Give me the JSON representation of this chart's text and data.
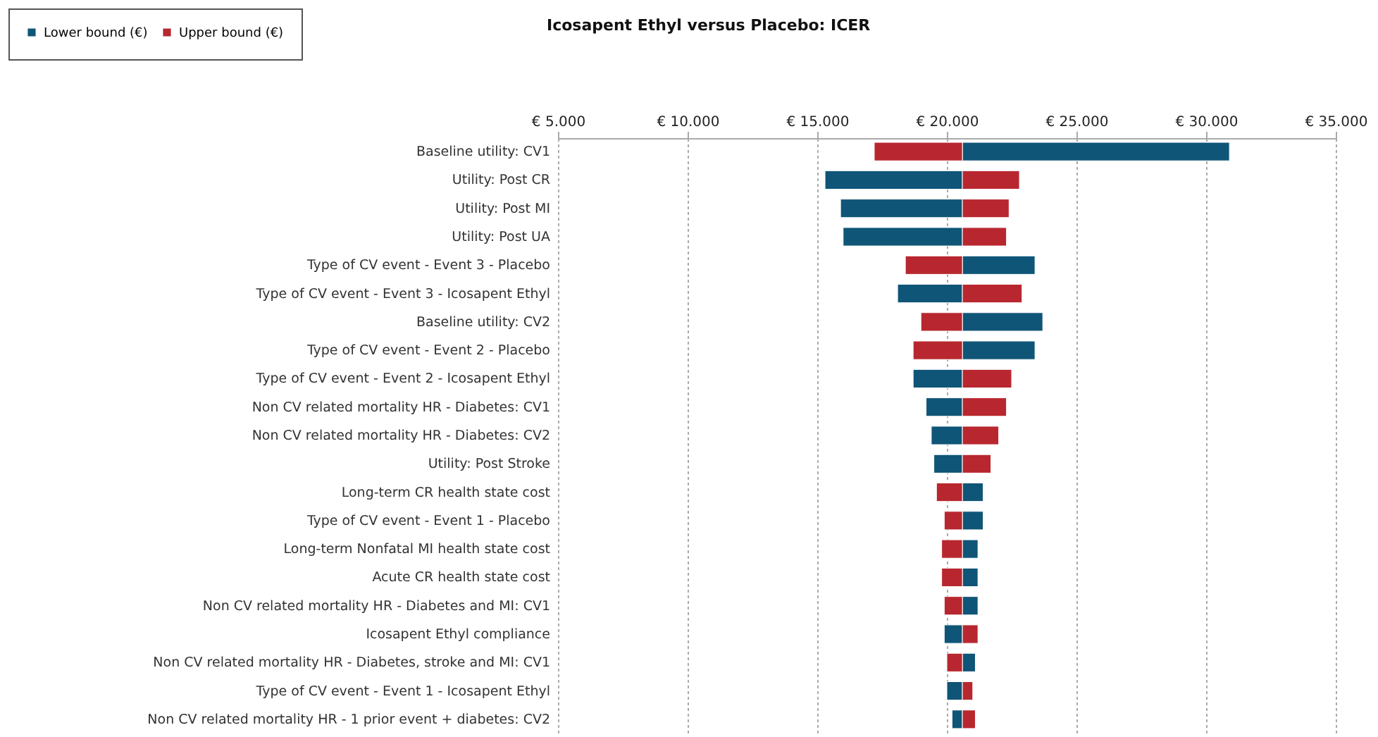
{
  "chart_data": {
    "type": "bar",
    "orientation": "horizontal",
    "title": "Icosapent Ethyl versus Placebo: ICER",
    "categories": [
      "Baseline utility: CV1",
      "Utility: Post CR",
      "Utility: Post MI",
      "Utility: Post UA",
      "Type of CV event - Event 3 - Placebo",
      "Type of CV event - Event 3 - Icosapent Ethyl",
      "Baseline utility: CV2",
      "Type of CV event - Event 2 - Placebo",
      "Type of CV event - Event 2 - Icosapent Ethyl",
      "Non CV related mortality HR - Diabetes: CV1",
      "Non CV related mortality HR - Diabetes: CV2",
      "Utility: Post Stroke",
      "Long-term CR health state cost",
      "Type of CV event - Event 1 - Placebo",
      "Long-term Nonfatal MI health state cost",
      "Acute CR health state cost",
      "Non CV related mortality HR - Diabetes and MI: CV1",
      "Icosapent Ethyl compliance",
      "Non CV related mortality HR - Diabetes, stroke and MI: CV1",
      "Type of CV event - Event 1 - Icosapent Ethyl",
      "Non CV related mortality HR - 1 prior event + diabetes: CV2"
    ],
    "series": [
      {
        "name": "Lower bound (€)",
        "color": "#0f5577",
        "base": [
          20600,
          20600,
          20600,
          20600,
          20600,
          20600,
          20600,
          20600,
          20600,
          20600,
          20600,
          20600,
          20600,
          20600,
          20600,
          20600,
          20600,
          20600,
          20600,
          20600,
          20600
        ],
        "values": [
          10300,
          -5300,
          -4700,
          -4600,
          2800,
          -2500,
          3100,
          2800,
          -1900,
          -1400,
          -1200,
          -1100,
          800,
          800,
          600,
          600,
          600,
          -700,
          500,
          -600,
          -400
        ]
      },
      {
        "name": "Upper bound (€)",
        "color": "#b8272f",
        "base": [
          20600,
          20600,
          20600,
          20600,
          20600,
          20600,
          20600,
          20600,
          20600,
          20600,
          20600,
          20600,
          20600,
          20600,
          20600,
          20600,
          20600,
          20600,
          20600,
          20600,
          20600
        ],
        "values": [
          -3400,
          2200,
          1800,
          1700,
          -2200,
          2300,
          -1600,
          -1900,
          1900,
          1700,
          1400,
          1100,
          -1000,
          -700,
          -800,
          -800,
          -700,
          600,
          -600,
          400,
          500
        ]
      }
    ],
    "xlim": [
      5000,
      35000
    ],
    "xticks": [
      {
        "value": 5000,
        "label": "€ 5.000"
      },
      {
        "value": 10000,
        "label": "€ 10.000"
      },
      {
        "value": 15000,
        "label": "€ 15.000"
      },
      {
        "value": 20000,
        "label": "€ 20.000"
      },
      {
        "value": 25000,
        "label": "€ 25.000"
      },
      {
        "value": 30000,
        "label": "€ 30.000"
      },
      {
        "value": 35000,
        "label": "€ 35.000"
      }
    ],
    "grid": "x",
    "legend": "top left"
  }
}
